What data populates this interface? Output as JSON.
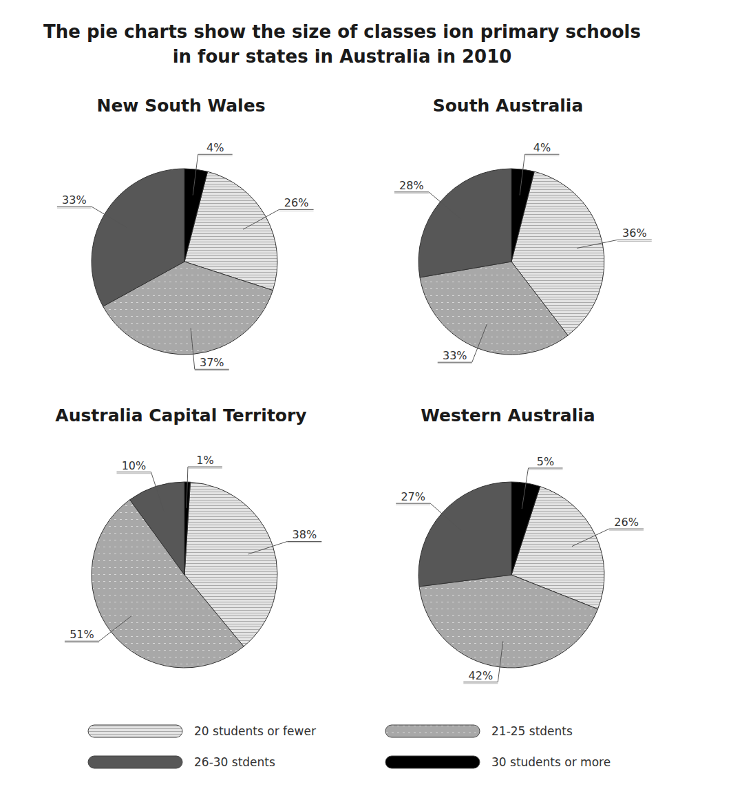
{
  "title": "The pie charts show the size of classes ion primary schools in four states in Australia in 2010",
  "chart_data": [
    {
      "type": "pie",
      "title": "New South Wales",
      "categories": [
        "20 students or fewer",
        "21-25 stdents",
        "26-30 stdents",
        "30 students or more"
      ],
      "values": [
        26,
        37,
        33,
        4
      ],
      "value_labels": [
        "26%",
        "37%",
        "33%",
        "4%"
      ],
      "colors": [
        "#e4e4e4",
        "#a8a8a8",
        "#575757",
        "#000000"
      ],
      "legend": "bottom",
      "data_labels": true
    },
    {
      "type": "pie",
      "title": "South Australia",
      "categories": [
        "20 students or fewer",
        "21-25 stdents",
        "26-30 stdents",
        "30 students or more"
      ],
      "values": [
        36,
        33,
        28,
        4
      ],
      "value_labels": [
        "36%",
        "33%",
        "28%",
        "4%"
      ],
      "colors": [
        "#e4e4e4",
        "#a8a8a8",
        "#575757",
        "#000000"
      ],
      "data_labels": true
    },
    {
      "type": "pie",
      "title": "Australia Capital Territory",
      "categories": [
        "20 students or fewer",
        "21-25 stdents",
        "26-30 stdents",
        "30 students or more"
      ],
      "values": [
        38,
        51,
        10,
        1
      ],
      "value_labels": [
        "38%",
        "51%",
        "10%",
        "1%"
      ],
      "colors": [
        "#e4e4e4",
        "#a8a8a8",
        "#575757",
        "#000000"
      ],
      "data_labels": true
    },
    {
      "type": "pie",
      "title": "Western Australia",
      "categories": [
        "20 students or fewer",
        "21-25 stdents",
        "26-30 stdents",
        "30 students or more"
      ],
      "values": [
        26,
        42,
        27,
        5
      ],
      "value_labels": [
        "26%",
        "42%",
        "27%",
        "5%"
      ],
      "colors": [
        "#e4e4e4",
        "#a8a8a8",
        "#575757",
        "#000000"
      ],
      "data_labels": true
    }
  ]
}
